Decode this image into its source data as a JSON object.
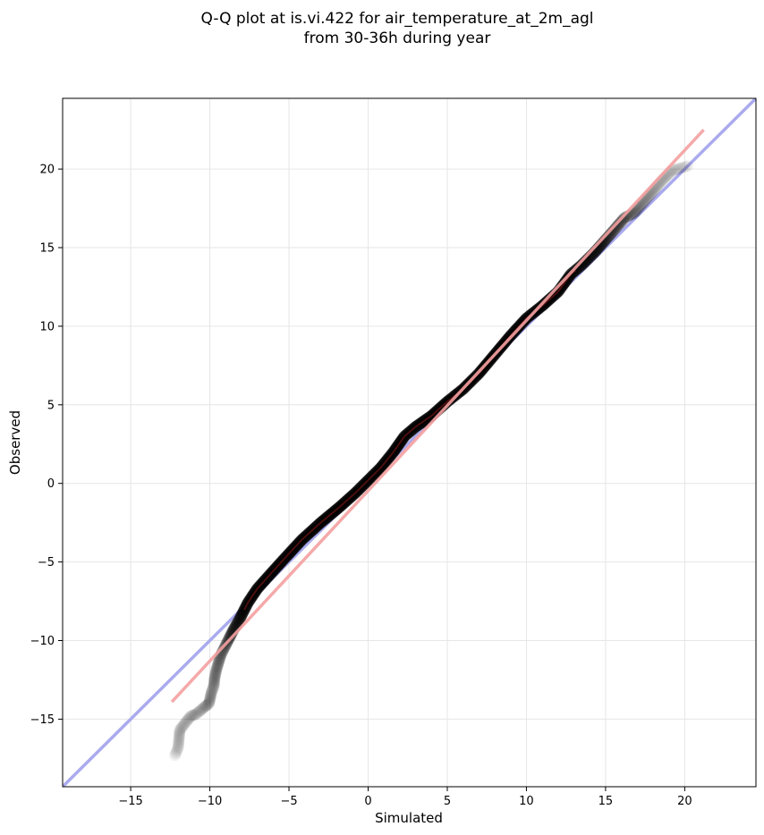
{
  "chart_data": {
    "type": "scatter",
    "title": [
      "Q-Q plot at is.vi.422 for air_temperature_at_2m_agl",
      "from 30-36h during year"
    ],
    "xlabel": "Simulated",
    "ylabel": "Observed",
    "xlim": [
      -19.3,
      24.5
    ],
    "ylim": [
      -19.3,
      24.5
    ],
    "xticks": [
      -15,
      -10,
      -5,
      0,
      5,
      10,
      15,
      20
    ],
    "yticks": [
      -15,
      -10,
      -5,
      0,
      5,
      10,
      15,
      20
    ],
    "xtick_labels": [
      "−15",
      "−10",
      "−5",
      "0",
      "5",
      "10",
      "15",
      "20"
    ],
    "ytick_labels": [
      "−15",
      "−10",
      "−5",
      "0",
      "5",
      "10",
      "15",
      "20"
    ],
    "grid": true,
    "reference_line": {
      "color": "#aaaaee",
      "from": [
        -19.3,
        -19.3
      ],
      "to": [
        24.5,
        24.5
      ]
    },
    "fit_line": {
      "color": "#f4a0a0",
      "from": [
        -12.4,
        -13.9
      ],
      "to": [
        21.2,
        22.5
      ]
    },
    "quantiles": {
      "x": [
        -12.2,
        -12.0,
        -11.9,
        -11.6,
        -11.2,
        -10.9,
        -10.3,
        -10.05,
        -9.9,
        -9.75,
        -9.7,
        -9.6,
        -9.45,
        -9.3,
        -9.05,
        -8.8,
        -8.5,
        -8.1,
        -7.6,
        -7.0,
        -6.2,
        -5.3,
        -4.2,
        -3.0,
        -1.8,
        -0.8,
        0.0,
        0.8,
        1.6,
        2.3,
        3.0,
        4.0,
        5.0,
        6.0,
        7.0,
        8.0,
        9.0,
        10.0,
        11.0,
        12.0,
        12.8,
        13.5,
        14.3,
        15.0,
        15.6,
        16.2,
        16.8,
        17.4,
        18.0,
        18.5,
        19.2,
        20.2
      ],
      "y": [
        -17.3,
        -16.8,
        -15.7,
        -15.3,
        -14.8,
        -14.7,
        -14.2,
        -14.0,
        -13.3,
        -12.9,
        -12.4,
        -11.9,
        -11.4,
        -10.9,
        -10.4,
        -9.9,
        -9.3,
        -8.6,
        -7.6,
        -6.7,
        -5.8,
        -4.8,
        -3.6,
        -2.5,
        -1.5,
        -0.6,
        0.2,
        1.0,
        2.0,
        3.0,
        3.6,
        4.3,
        5.2,
        6.0,
        7.0,
        8.2,
        9.4,
        10.5,
        11.3,
        12.2,
        13.3,
        13.9,
        14.7,
        15.5,
        16.2,
        16.9,
        17.2,
        17.9,
        18.6,
        19.2,
        19.9,
        20.2
      ],
      "opacity": [
        0.1,
        0.12,
        0.14,
        0.14,
        0.16,
        0.16,
        0.2,
        0.2,
        0.22,
        0.24,
        0.26,
        0.28,
        0.3,
        0.34,
        0.4,
        0.5,
        0.65,
        0.8,
        0.9,
        0.95,
        1,
        1,
        1,
        1,
        1,
        1,
        1,
        1,
        1,
        1,
        1,
        1,
        1,
        1,
        1,
        1,
        1,
        1,
        1,
        0.95,
        0.9,
        0.8,
        0.7,
        0.55,
        0.45,
        0.38,
        0.3,
        0.22,
        0.18,
        0.14,
        0.12,
        0.08
      ]
    },
    "marker_color": "#000000",
    "inner_line_colors": [
      "#8b1a1a",
      "#1a1a8b"
    ]
  }
}
